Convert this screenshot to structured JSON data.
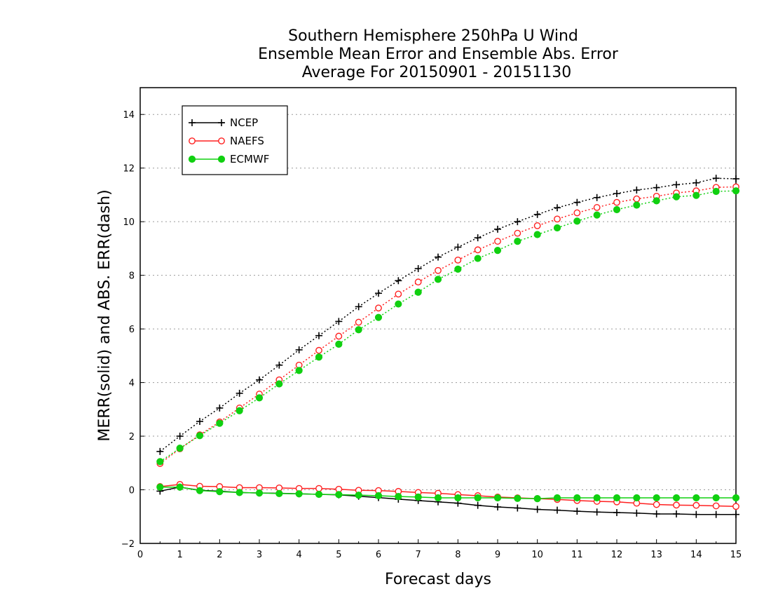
{
  "chart_data": {
    "type": "line",
    "title_lines": [
      "Southern Hemisphere 250hPa U Wind",
      "Ensemble Mean Error and Ensemble Abs. Error",
      "Average For 20150901 - 20151130"
    ],
    "xlabel": "Forecast days",
    "ylabel": "MERR(solid) and ABS. ERR(dash)",
    "xlim": [
      0,
      15
    ],
    "ylim": [
      -2,
      15
    ],
    "xticks": [
      0,
      1,
      2,
      3,
      4,
      5,
      6,
      7,
      8,
      9,
      10,
      11,
      12,
      13,
      14,
      15
    ],
    "yticks": [
      -2,
      0,
      2,
      4,
      6,
      8,
      10,
      12,
      14
    ],
    "grid": "horizontal dotted",
    "legend_position": "top-left",
    "x": [
      0.5,
      1,
      1.5,
      2,
      2.5,
      3,
      3.5,
      4,
      4.5,
      5,
      5.5,
      6,
      6.5,
      7,
      7.5,
      8,
      8.5,
      9,
      9.5,
      10,
      10.5,
      11,
      11.5,
      12,
      12.5,
      13,
      13.5,
      14,
      14.5,
      15
    ],
    "series": [
      {
        "name": "NCEP",
        "color": "#000000",
        "marker": "plus",
        "merr": [
          -0.05,
          0.1,
          -0.02,
          -0.05,
          -0.1,
          -0.12,
          -0.13,
          -0.15,
          -0.17,
          -0.19,
          -0.24,
          -0.29,
          -0.35,
          -0.4,
          -0.45,
          -0.5,
          -0.58,
          -0.64,
          -0.68,
          -0.73,
          -0.76,
          -0.8,
          -0.83,
          -0.85,
          -0.87,
          -0.9,
          -0.9,
          -0.92,
          -0.92,
          -0.92
        ],
        "abs_err": [
          1.43,
          2.0,
          2.55,
          3.05,
          3.6,
          4.1,
          4.65,
          5.22,
          5.75,
          6.28,
          6.83,
          7.33,
          7.8,
          8.25,
          8.68,
          9.05,
          9.4,
          9.72,
          10.0,
          10.27,
          10.52,
          10.72,
          10.9,
          11.05,
          11.18,
          11.27,
          11.38,
          11.45,
          11.62,
          11.6
        ]
      },
      {
        "name": "NAEFS",
        "color": "#ff2020",
        "marker": "open-circle",
        "merr": [
          0.12,
          0.2,
          0.13,
          0.12,
          0.08,
          0.08,
          0.07,
          0.05,
          0.05,
          0.02,
          -0.02,
          -0.03,
          -0.06,
          -0.1,
          -0.13,
          -0.18,
          -0.22,
          -0.27,
          -0.3,
          -0.33,
          -0.36,
          -0.4,
          -0.43,
          -0.45,
          -0.5,
          -0.55,
          -0.57,
          -0.58,
          -0.6,
          -0.62
        ],
        "abs_err": [
          0.98,
          1.53,
          2.05,
          2.53,
          3.05,
          3.57,
          4.1,
          4.65,
          5.2,
          5.73,
          6.25,
          6.78,
          7.3,
          7.75,
          8.18,
          8.57,
          8.95,
          9.27,
          9.57,
          9.85,
          10.1,
          10.33,
          10.53,
          10.72,
          10.85,
          10.95,
          11.07,
          11.15,
          11.28,
          11.3
        ]
      },
      {
        "name": "ECMWF",
        "color": "#10d010",
        "marker": "filled-circle",
        "merr": [
          0.1,
          0.1,
          -0.03,
          -0.07,
          -0.1,
          -0.12,
          -0.14,
          -0.15,
          -0.17,
          -0.18,
          -0.2,
          -0.22,
          -0.25,
          -0.27,
          -0.3,
          -0.3,
          -0.3,
          -0.3,
          -0.32,
          -0.33,
          -0.3,
          -0.3,
          -0.3,
          -0.3,
          -0.3,
          -0.3,
          -0.3,
          -0.3,
          -0.3,
          -0.3
        ],
        "abs_err": [
          1.05,
          1.55,
          2.02,
          2.48,
          2.95,
          3.43,
          3.95,
          4.45,
          4.95,
          5.43,
          5.97,
          6.43,
          6.93,
          7.37,
          7.85,
          8.23,
          8.63,
          8.93,
          9.27,
          9.52,
          9.77,
          10.02,
          10.25,
          10.45,
          10.62,
          10.78,
          10.93,
          10.98,
          11.13,
          11.15
        ]
      }
    ]
  }
}
